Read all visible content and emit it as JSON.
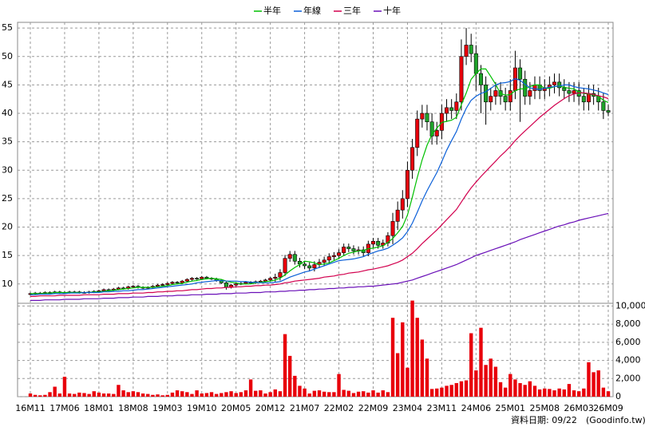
{
  "chart_data": {
    "type": "candlestick",
    "categories": [
      "16M11",
      null,
      null,
      null,
      null,
      null,
      null,
      "17M06",
      null,
      null,
      null,
      null,
      null,
      null,
      "18M01",
      null,
      null,
      null,
      null,
      null,
      null,
      "18M08",
      null,
      null,
      null,
      null,
      null,
      null,
      "19M03",
      null,
      null,
      null,
      null,
      null,
      null,
      "19M10",
      null,
      null,
      null,
      null,
      null,
      null,
      "20M05",
      null,
      null,
      null,
      null,
      null,
      null,
      "20M12",
      null,
      null,
      null,
      null,
      null,
      null,
      "21M07",
      null,
      null,
      null,
      null,
      null,
      null,
      "22M02",
      null,
      null,
      null,
      null,
      null,
      null,
      "22M09",
      null,
      null,
      null,
      null,
      null,
      null,
      "23M04",
      null,
      null,
      null,
      null,
      null,
      null,
      "23M11",
      null,
      null,
      null,
      null,
      null,
      null,
      "24M06",
      null,
      null,
      null,
      null,
      null,
      null,
      "25M01",
      null,
      null,
      null,
      null,
      null,
      null,
      "25M08",
      null,
      null,
      null,
      null,
      null,
      null,
      "26M03",
      null,
      null,
      null,
      null,
      null,
      "26M09"
    ],
    "open": [
      8.2,
      8.3,
      8.4,
      8.4,
      8.5,
      8.5,
      8.6,
      8.5,
      8.5,
      8.6,
      8.6,
      8.5,
      8.5,
      8.6,
      8.7,
      8.8,
      9.0,
      8.9,
      9.1,
      9.3,
      9.2,
      9.5,
      9.6,
      9.4,
      9.3,
      9.4,
      9.6,
      9.8,
      9.9,
      10.1,
      10.3,
      10.2,
      10.5,
      10.8,
      11.0,
      10.9,
      11.2,
      11.0,
      10.9,
      10.6,
      10.2,
      9.4,
      9.8,
      10.0,
      10.1,
      10.3,
      10.2,
      10.4,
      10.5,
      10.7,
      11.0,
      11.2,
      12.0,
      14.5,
      15.2,
      14.0,
      13.5,
      13.2,
      12.8,
      13.4,
      13.8,
      14.2,
      14.8,
      15.0,
      15.5,
      16.5,
      16.2,
      15.8,
      16.0,
      15.5,
      17.0,
      17.5,
      16.8,
      17.2,
      18.5,
      21.0,
      23.0,
      25.0,
      30.0,
      34.0,
      39.0,
      40.0,
      38.5,
      36.0,
      37.0,
      40.0,
      41.0,
      40.5,
      42.0,
      50.0,
      52.0,
      50.5,
      47.0,
      45.0,
      42.0,
      43.0,
      44.0,
      43.0,
      42.0,
      44.0,
      48.0,
      46.0,
      43.0,
      44.0,
      45.0,
      44.0,
      44.5,
      45.0,
      45.5,
      44.5,
      44.0,
      43.5,
      44.0,
      43.0,
      42.0,
      43.5,
      43.0,
      42.0,
      40.5
    ],
    "high": [
      8.5,
      8.6,
      8.6,
      8.7,
      8.7,
      8.8,
      8.8,
      8.7,
      8.8,
      8.8,
      8.8,
      8.7,
      8.8,
      8.9,
      9.0,
      9.2,
      9.2,
      9.3,
      9.5,
      9.5,
      9.7,
      9.8,
      9.8,
      9.6,
      9.6,
      9.8,
      10.0,
      10.1,
      10.3,
      10.5,
      10.5,
      10.7,
      11.0,
      11.2,
      11.2,
      11.4,
      11.4,
      11.2,
      11.1,
      10.8,
      10.4,
      10.0,
      10.2,
      10.3,
      10.5,
      10.5,
      10.6,
      10.7,
      10.9,
      11.2,
      11.8,
      12.6,
      15.1,
      15.8,
      15.8,
      14.6,
      14.1,
      13.8,
      14.0,
      14.4,
      14.8,
      15.4,
      15.6,
      16.1,
      17.1,
      17.1,
      16.8,
      16.6,
      16.6,
      17.6,
      18.1,
      18.1,
      17.8,
      19.1,
      22.5,
      24.5,
      26.5,
      31.5,
      35.5,
      40.5,
      41.5,
      41.5,
      40.0,
      38.5,
      41.5,
      42.5,
      42.5,
      43.5,
      53.0,
      55.0,
      54.0,
      52.0,
      48.5,
      46.5,
      44.5,
      45.5,
      45.5,
      44.5,
      46.0,
      51.0,
      49.5,
      47.5,
      45.5,
      46.5,
      46.5,
      46.0,
      46.5,
      47.0,
      47.0,
      46.0,
      45.5,
      45.5,
      45.5,
      44.5,
      45.0,
      45.0,
      44.5,
      43.5,
      41.5
    ],
    "low": [
      8.0,
      8.1,
      8.2,
      8.2,
      8.3,
      8.3,
      8.3,
      8.3,
      8.3,
      8.4,
      8.3,
      8.3,
      8.3,
      8.4,
      8.5,
      8.6,
      8.7,
      8.7,
      8.9,
      9.0,
      9.0,
      9.3,
      9.2,
      9.1,
      9.1,
      9.2,
      9.4,
      9.6,
      9.7,
      9.9,
      10.0,
      10.0,
      10.3,
      10.6,
      10.7,
      10.7,
      10.8,
      10.7,
      10.4,
      10.0,
      9.0,
      9.2,
      9.6,
      9.8,
      9.9,
      10.0,
      10.0,
      10.2,
      10.3,
      10.5,
      10.4,
      10.6,
      11.4,
      13.9,
      13.4,
      12.9,
      12.6,
      12.2,
      12.2,
      12.8,
      13.2,
      13.6,
      14.2,
      14.4,
      14.9,
      15.6,
      15.2,
      15.2,
      14.9,
      14.9,
      16.4,
      16.2,
      16.2,
      16.6,
      17.0,
      19.5,
      21.5,
      23.5,
      28.5,
      32.5,
      37.5,
      37.0,
      34.5,
      34.5,
      35.5,
      38.5,
      39.0,
      39.0,
      40.5,
      48.5,
      49.0,
      44.0,
      40.0,
      38.0,
      40.5,
      41.5,
      41.5,
      40.5,
      40.5,
      42.5,
      38.5,
      41.5,
      41.5,
      42.5,
      42.5,
      42.5,
      43.0,
      43.5,
      43.0,
      42.5,
      42.0,
      42.0,
      41.5,
      40.5,
      40.5,
      41.5,
      40.5,
      39.0,
      39.5
    ],
    "close": [
      8.3,
      8.4,
      8.4,
      8.5,
      8.5,
      8.6,
      8.5,
      8.5,
      8.6,
      8.6,
      8.5,
      8.5,
      8.6,
      8.7,
      8.8,
      9.0,
      8.9,
      9.1,
      9.3,
      9.2,
      9.5,
      9.6,
      9.4,
      9.3,
      9.4,
      9.6,
      9.8,
      9.9,
      10.1,
      10.3,
      10.2,
      10.5,
      10.8,
      11.0,
      10.9,
      11.2,
      11.0,
      10.9,
      10.6,
      10.2,
      9.4,
      9.8,
      10.0,
      10.1,
      10.3,
      10.2,
      10.4,
      10.5,
      10.7,
      11.0,
      11.2,
      12.0,
      14.5,
      15.2,
      14.0,
      13.5,
      13.2,
      12.8,
      13.4,
      13.8,
      14.2,
      14.8,
      15.0,
      15.5,
      16.5,
      16.2,
      15.8,
      16.0,
      15.5,
      17.0,
      17.5,
      16.8,
      17.2,
      18.5,
      21.0,
      23.0,
      25.0,
      30.0,
      34.0,
      39.0,
      40.0,
      38.5,
      36.0,
      37.0,
      40.0,
      41.0,
      40.5,
      42.0,
      50.0,
      52.0,
      50.5,
      47.0,
      45.0,
      42.0,
      43.0,
      44.0,
      43.0,
      42.0,
      44.0,
      48.0,
      46.0,
      43.0,
      44.0,
      45.0,
      44.0,
      44.5,
      45.0,
      45.5,
      44.5,
      44.0,
      43.5,
      44.0,
      43.0,
      42.0,
      43.5,
      43.0,
      42.0,
      40.5,
      40.2
    ],
    "up_color": "#e8000b",
    "down_color": "#1fa32a",
    "series": [
      {
        "name": "半年",
        "color": "#00c000",
        "values": [
          8.3,
          8.3,
          8.3,
          8.4,
          8.4,
          8.5,
          8.5,
          8.5,
          8.5,
          8.5,
          8.5,
          8.5,
          8.5,
          8.6,
          8.6,
          8.7,
          8.8,
          8.9,
          9.0,
          9.1,
          9.2,
          9.3,
          9.4,
          9.4,
          9.4,
          9.4,
          9.5,
          9.6,
          9.7,
          9.9,
          10.0,
          10.1,
          10.3,
          10.5,
          10.6,
          10.8,
          10.9,
          11.0,
          10.9,
          10.8,
          10.5,
          10.3,
          10.2,
          10.0,
          10.0,
          10.0,
          10.2,
          10.3,
          10.4,
          10.5,
          10.7,
          11.0,
          11.6,
          12.3,
          12.9,
          13.4,
          14.0,
          13.9,
          13.7,
          13.4,
          13.5,
          13.7,
          14.1,
          14.5,
          15.0,
          15.4,
          15.6,
          15.8,
          15.9,
          16.2,
          16.3,
          16.5,
          16.7,
          17.3,
          18.0,
          19.0,
          20.1,
          22.1,
          25.3,
          28.7,
          31.8,
          34.4,
          36.3,
          37.4,
          38.4,
          38.6,
          38.8,
          39.3,
          41.5,
          43.6,
          46.0,
          47.0,
          47.8,
          47.8,
          46.5,
          45.1,
          43.5,
          43.2,
          43.3,
          44.0,
          44.3,
          44.3,
          44.7,
          45.0,
          45.0,
          44.4,
          44.4,
          44.7,
          44.8,
          44.6,
          44.4,
          44.3,
          43.8,
          43.5,
          43.4,
          43.2,
          43.0,
          42.3,
          41.9
        ]
      },
      {
        "name": "年線",
        "color": "#0a5fd8",
        "values": [
          8.1,
          8.1,
          8.2,
          8.2,
          8.2,
          8.3,
          8.3,
          8.3,
          8.4,
          8.4,
          8.4,
          8.5,
          8.5,
          8.5,
          8.5,
          8.6,
          8.6,
          8.7,
          8.7,
          8.8,
          8.8,
          8.9,
          9.0,
          9.0,
          9.1,
          9.2,
          9.3,
          9.4,
          9.5,
          9.6,
          9.7,
          9.8,
          9.9,
          10.0,
          10.2,
          10.3,
          10.4,
          10.5,
          10.6,
          10.6,
          10.5,
          10.5,
          10.5,
          10.4,
          10.4,
          10.3,
          10.3,
          10.2,
          10.2,
          10.2,
          10.3,
          10.4,
          10.8,
          11.2,
          11.5,
          11.8,
          12.1,
          12.3,
          12.6,
          12.9,
          13.2,
          13.5,
          13.8,
          14.1,
          14.2,
          14.3,
          14.4,
          14.6,
          14.8,
          15.2,
          15.5,
          15.8,
          16.0,
          16.3,
          16.8,
          17.4,
          18.1,
          19.2,
          20.7,
          22.6,
          24.6,
          26.4,
          28.0,
          29.6,
          31.5,
          33.5,
          35.2,
          36.8,
          39.0,
          40.9,
          42.3,
          43.0,
          43.5,
          43.8,
          44.4,
          45.0,
          45.3,
          45.4,
          45.6,
          46.1,
          45.8,
          45.1,
          44.5,
          44.3,
          44.2,
          44.4,
          44.6,
          44.7,
          44.8,
          45.0,
          45.0,
          44.7,
          44.5,
          44.4,
          44.3,
          44.1,
          43.9,
          43.6,
          43.3
        ]
      },
      {
        "name": "三年",
        "color": "#d2004e",
        "values": [
          7.8,
          7.8,
          7.9,
          7.9,
          7.9,
          7.9,
          8.0,
          8.0,
          8.0,
          8.0,
          8.0,
          8.1,
          8.1,
          8.1,
          8.1,
          8.2,
          8.2,
          8.2,
          8.3,
          8.3,
          8.3,
          8.4,
          8.4,
          8.4,
          8.5,
          8.5,
          8.6,
          8.6,
          8.7,
          8.7,
          8.8,
          8.8,
          8.9,
          9.0,
          9.0,
          9.1,
          9.2,
          9.2,
          9.3,
          9.3,
          9.4,
          9.4,
          9.5,
          9.5,
          9.6,
          9.6,
          9.7,
          9.7,
          9.8,
          9.8,
          9.9,
          10.0,
          10.2,
          10.3,
          10.5,
          10.6,
          10.7,
          10.8,
          10.9,
          11.0,
          11.2,
          11.3,
          11.4,
          11.6,
          11.7,
          11.9,
          12.0,
          12.1,
          12.3,
          12.5,
          12.6,
          12.8,
          13.0,
          13.2,
          13.5,
          13.8,
          14.2,
          14.8,
          15.4,
          16.2,
          17.1,
          17.9,
          18.7,
          19.5,
          20.4,
          21.3,
          22.2,
          23.1,
          24.4,
          25.7,
          26.9,
          27.9,
          28.9,
          29.8,
          30.7,
          31.6,
          32.5,
          33.3,
          34.2,
          35.2,
          36.1,
          36.9,
          37.7,
          38.5,
          39.3,
          40.0,
          40.7,
          41.4,
          42.0,
          42.6,
          43.1,
          43.4,
          43.6,
          43.6,
          43.5,
          43.3,
          43.1,
          42.9,
          42.6
        ]
      },
      {
        "name": "十年",
        "color": "#6a10b8",
        "values": [
          7.1,
          7.1,
          7.1,
          7.2,
          7.2,
          7.2,
          7.2,
          7.3,
          7.3,
          7.3,
          7.3,
          7.4,
          7.4,
          7.4,
          7.4,
          7.5,
          7.5,
          7.5,
          7.6,
          7.6,
          7.6,
          7.7,
          7.7,
          7.7,
          7.8,
          7.8,
          7.8,
          7.9,
          7.9,
          7.9,
          8.0,
          8.0,
          8.0,
          8.1,
          8.1,
          8.1,
          8.2,
          8.2,
          8.2,
          8.3,
          8.3,
          8.3,
          8.4,
          8.4,
          8.4,
          8.5,
          8.5,
          8.5,
          8.6,
          8.6,
          8.6,
          8.7,
          8.7,
          8.8,
          8.8,
          8.9,
          8.9,
          9.0,
          9.0,
          9.1,
          9.1,
          9.2,
          9.2,
          9.3,
          9.3,
          9.4,
          9.4,
          9.5,
          9.5,
          9.6,
          9.6,
          9.7,
          9.8,
          9.9,
          10.0,
          10.1,
          10.3,
          10.5,
          10.7,
          11.0,
          11.3,
          11.6,
          11.9,
          12.2,
          12.5,
          12.8,
          13.1,
          13.4,
          13.8,
          14.2,
          14.6,
          15.0,
          15.3,
          15.6,
          15.9,
          16.2,
          16.5,
          16.8,
          17.1,
          17.4,
          17.8,
          18.1,
          18.4,
          18.7,
          19.0,
          19.3,
          19.6,
          19.9,
          20.2,
          20.4,
          20.7,
          20.9,
          21.2,
          21.4,
          21.6,
          21.8,
          22.0,
          22.2,
          22.4
        ]
      }
    ],
    "ylim": [
      6.6,
      56
    ],
    "yticks": [
      10,
      15,
      20,
      25,
      30,
      35,
      40,
      45,
      50,
      55
    ],
    "grid": true,
    "volume": {
      "color": "#e8000b",
      "values": [
        350,
        200,
        150,
        200,
        500,
        1100,
        350,
        2200,
        350,
        300,
        450,
        400,
        300,
        600,
        450,
        350,
        350,
        300,
        1300,
        700,
        500,
        600,
        500,
        350,
        300,
        200,
        250,
        150,
        200,
        450,
        700,
        600,
        500,
        300,
        700,
        350,
        400,
        500,
        300,
        400,
        500,
        600,
        400,
        500,
        700,
        1900,
        650,
        700,
        350,
        500,
        800,
        600,
        6900,
        4500,
        2300,
        1200,
        900,
        350,
        650,
        700,
        550,
        500,
        500,
        2500,
        750,
        650,
        400,
        550,
        600,
        450,
        700,
        450,
        700,
        500,
        8700,
        4800,
        8200,
        3200,
        10600,
        8700,
        6300,
        4200,
        850,
        900,
        1000,
        1200,
        1300,
        1500,
        1700,
        1800,
        7000,
        2900,
        7600,
        3500,
        4200,
        3300,
        1600,
        1000,
        2500,
        1900,
        1500,
        1300,
        1700,
        1200,
        800,
        900,
        850,
        700,
        900,
        800,
        1400,
        700,
        600,
        900,
        3800,
        2700,
        2900,
        1000,
        600
      ],
      "ylim": [
        0,
        10300
      ],
      "yticks": [
        0,
        {
          "value": 2000,
          "label": "2,000"
        },
        {
          "value": 4000,
          "label": "4,000"
        },
        {
          "value": 6000,
          "label": "6,000"
        },
        {
          "value": 8000,
          "label": "8,000"
        },
        {
          "value": 10000,
          "label": "10,000"
        }
      ]
    },
    "footer": "資料日期: 09/22",
    "source": "(Goodinfo.tw)"
  }
}
